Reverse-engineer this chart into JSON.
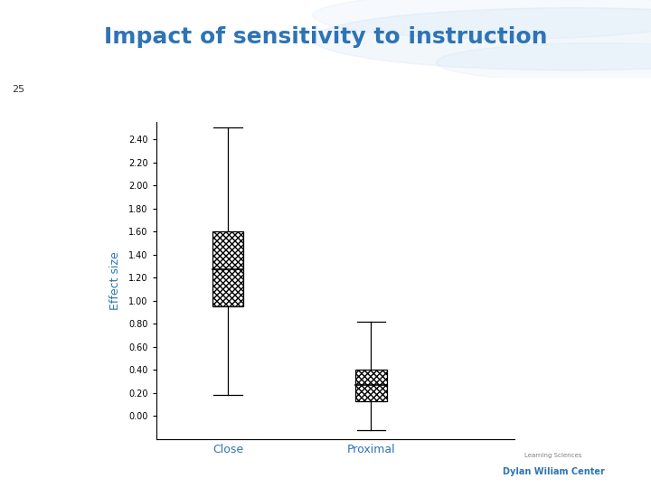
{
  "title": "Impact of sensitivity to instruction",
  "slide_number": "25",
  "ylabel": "Effect size",
  "categories": [
    "Close",
    "Proximal"
  ],
  "boxes": [
    {
      "label": "Close",
      "x": 1,
      "q1": 0.95,
      "median": 1.27,
      "q3": 1.6,
      "whisker_low": 0.18,
      "whisker_high": 2.5
    },
    {
      "label": "Proximal",
      "x": 2,
      "q1": 0.13,
      "median": 0.27,
      "q3": 0.4,
      "whisker_low": -0.12,
      "whisker_high": 0.82
    }
  ],
  "ylim": [
    -0.2,
    2.55
  ],
  "yticks": [
    0.0,
    0.2,
    0.4,
    0.6,
    0.8,
    1.0,
    1.2,
    1.4,
    1.6,
    1.8,
    2.0,
    2.2,
    2.4
  ],
  "ytick_labels": [
    "0.00",
    "0.20",
    "0.40",
    "0.60",
    "0.80",
    "1.00",
    "1.20",
    "1.40",
    "1.60",
    "1.80",
    "2.00",
    "2.20",
    "2.40"
  ],
  "title_color": "#2E74B5",
  "ylabel_color": "#2E74B5",
  "cat_label_color": "#2E74B5",
  "background_color": "#FFFFFF",
  "header_bar_color": "#2E9AC4",
  "slide_number_bg": "#BBBBBB",
  "slide_number_color": "#333333",
  "title_fontsize": 18,
  "axis_fontsize": 7,
  "label_fontsize": 9,
  "ylabel_fontsize": 9,
  "box_width": 0.22,
  "xlim": [
    0.5,
    3.0
  ]
}
